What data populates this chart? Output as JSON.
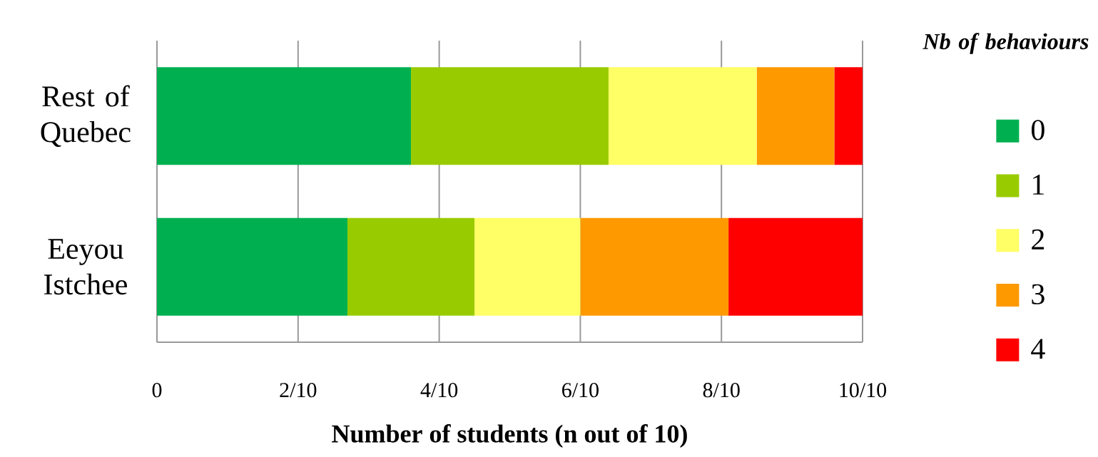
{
  "chart_data": {
    "type": "bar",
    "orientation": "horizontal",
    "stacked": true,
    "xlabel": "Number of students (n out of 10)",
    "legend_title": "Nb of behaviours",
    "categories": [
      "Rest of Quebec",
      "Eeyou Istchee"
    ],
    "series": [
      {
        "name": "0",
        "color": "#00b050",
        "values": [
          0.36,
          0.27
        ]
      },
      {
        "name": "1",
        "color": "#99cc00",
        "values": [
          0.28,
          0.18
        ]
      },
      {
        "name": "2",
        "color": "#ffff66",
        "values": [
          0.21,
          0.15
        ]
      },
      {
        "name": "3",
        "color": "#ff9900",
        "values": [
          0.11,
          0.21
        ]
      },
      {
        "name": "4",
        "color": "#ff0000",
        "values": [
          0.04,
          0.19
        ]
      }
    ],
    "xlim": [
      0,
      1
    ],
    "xticks": [
      0,
      {
        "value": 0.2,
        "label": "2/10"
      },
      {
        "value": 0.4,
        "label": "4/10"
      },
      {
        "value": 0.6,
        "label": "6/10"
      },
      {
        "value": 0.8,
        "label": "8/10"
      },
      {
        "value": 1,
        "label": "10/10"
      }
    ],
    "grid": "x",
    "legend": "right"
  }
}
